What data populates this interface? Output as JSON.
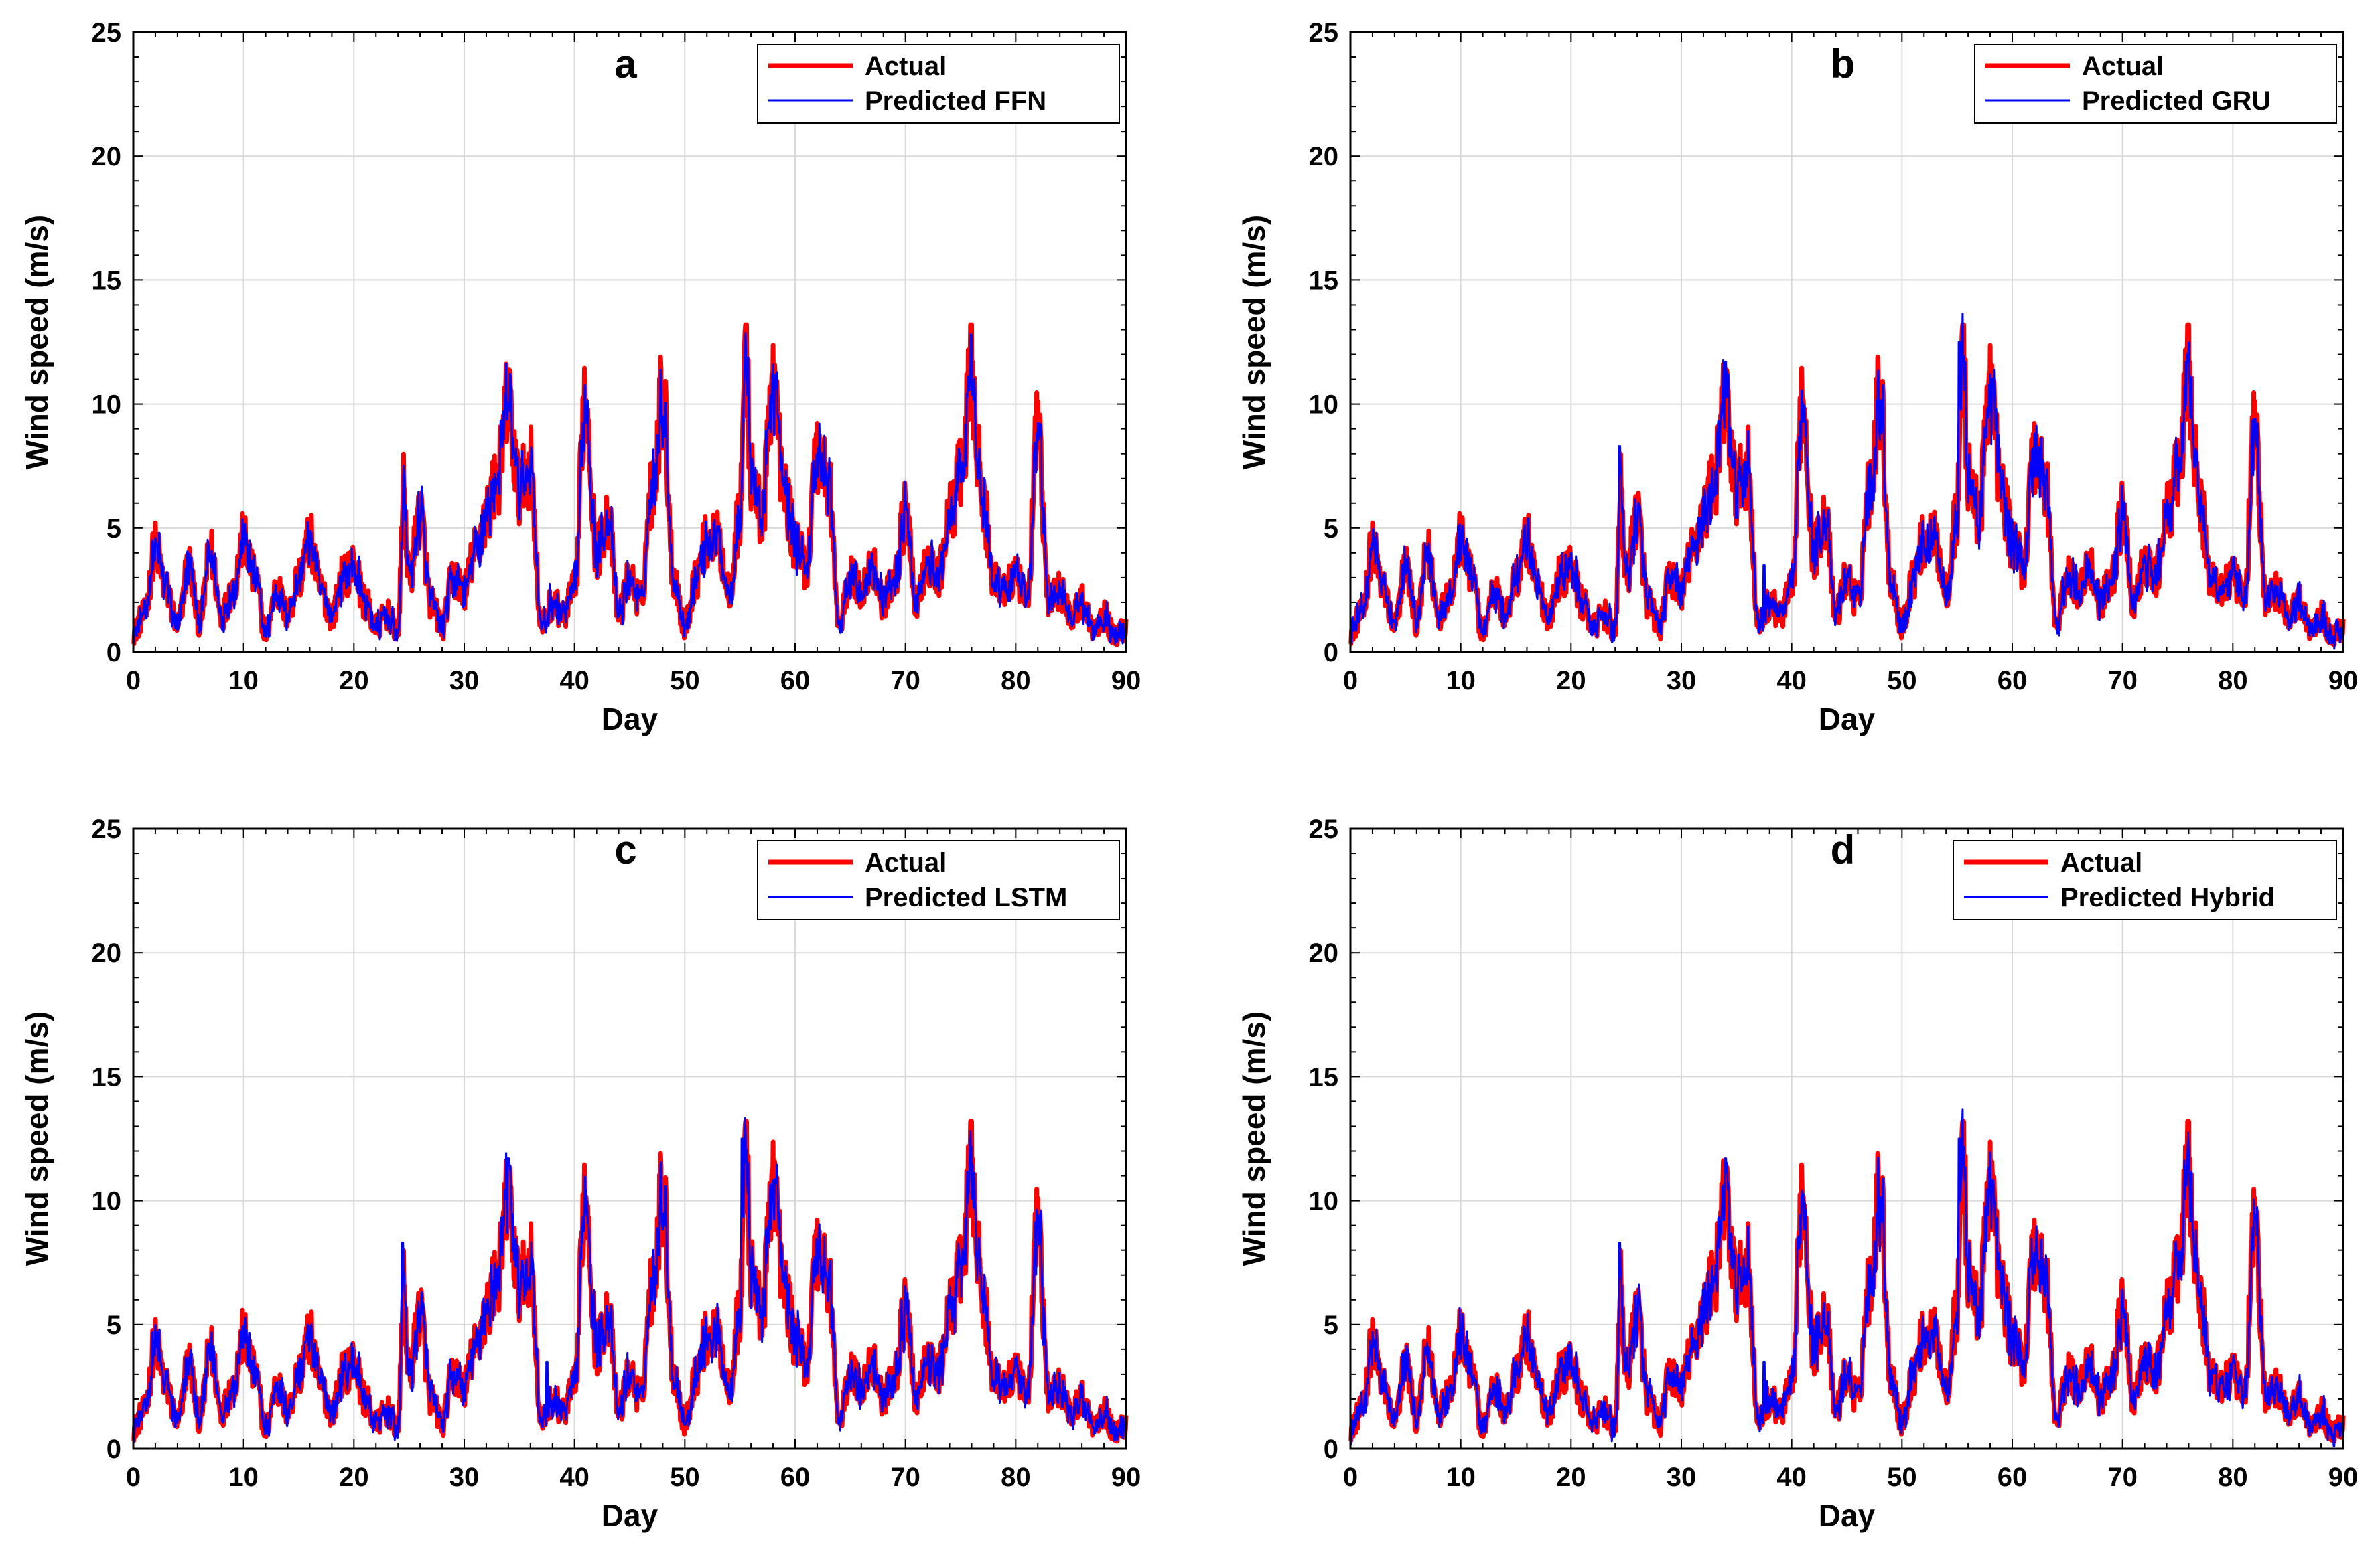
{
  "chart_data": [
    {
      "type": "line",
      "panel_label": "a",
      "xlabel": "Day",
      "ylabel": "Wind speed (m/s)",
      "xlim": [
        0,
        90
      ],
      "ylim": [
        0,
        25
      ],
      "xticks": [
        0,
        10,
        20,
        30,
        40,
        50,
        60,
        70,
        80,
        90
      ],
      "yticks": [
        0,
        5,
        10,
        15,
        20,
        25
      ],
      "grid": true,
      "legend_position": "top-right",
      "series": [
        {
          "name": "Actual",
          "color": "#ff0000"
        },
        {
          "name": "Predicted FFN",
          "color": "#0000ff"
        }
      ]
    },
    {
      "type": "line",
      "panel_label": "b",
      "xlabel": "Day",
      "ylabel": "Wind speed (m/s)",
      "xlim": [
        0,
        90
      ],
      "ylim": [
        0,
        25
      ],
      "xticks": [
        0,
        10,
        20,
        30,
        40,
        50,
        60,
        70,
        80,
        90
      ],
      "yticks": [
        0,
        5,
        10,
        15,
        20,
        25
      ],
      "grid": true,
      "legend_position": "top-right",
      "series": [
        {
          "name": "Actual",
          "color": "#ff0000"
        },
        {
          "name": "Predicted GRU",
          "color": "#0000ff"
        }
      ]
    },
    {
      "type": "line",
      "panel_label": "c",
      "xlabel": "Day",
      "ylabel": "Wind speed (m/s)",
      "xlim": [
        0,
        90
      ],
      "ylim": [
        0,
        25
      ],
      "xticks": [
        0,
        10,
        20,
        30,
        40,
        50,
        60,
        70,
        80,
        90
      ],
      "yticks": [
        0,
        5,
        10,
        15,
        20,
        25
      ],
      "grid": true,
      "legend_position": "top-right",
      "series": [
        {
          "name": "Actual",
          "color": "#ff0000"
        },
        {
          "name": "Predicted LSTM",
          "color": "#0000ff"
        }
      ]
    },
    {
      "type": "line",
      "panel_label": "d",
      "xlabel": "Day",
      "ylabel": "Wind speed (m/s)",
      "xlim": [
        0,
        90
      ],
      "ylim": [
        0,
        25
      ],
      "xticks": [
        0,
        10,
        20,
        30,
        40,
        50,
        60,
        70,
        80,
        90
      ],
      "yticks": [
        0,
        5,
        10,
        15,
        20,
        25
      ],
      "grid": true,
      "legend_position": "top-right",
      "series": [
        {
          "name": "Actual",
          "color": "#ff0000"
        },
        {
          "name": "Predicted Hybrid",
          "color": "#0000ff"
        }
      ]
    }
  ],
  "actual_key_points": {
    "days": [
      0,
      1,
      2,
      3,
      4,
      5,
      6,
      7,
      8,
      9,
      10,
      11,
      12,
      13,
      14,
      15,
      16,
      17,
      18,
      19,
      20,
      21,
      22,
      23,
      24,
      24.5,
      25,
      26,
      27,
      28,
      29,
      30,
      31,
      32,
      33,
      34,
      35,
      36,
      37,
      38,
      39,
      40,
      41,
      42,
      43,
      44,
      45,
      46,
      47,
      48,
      49,
      50,
      51,
      52,
      53,
      54,
      55,
      55.5,
      56,
      57,
      58,
      59,
      60,
      61,
      62,
      63,
      64,
      65,
      66,
      67,
      68,
      69,
      70,
      71,
      72,
      73,
      74,
      75,
      76,
      77,
      78,
      79,
      80,
      81,
      82,
      83,
      84,
      85,
      86,
      87,
      88,
      89,
      90
    ],
    "speeds": [
      0.8,
      1.5,
      4.2,
      2.5,
      1.0,
      3.5,
      1.2,
      4.0,
      1.5,
      2.5,
      4.5,
      3.0,
      0.8,
      2.5,
      1.5,
      3.0,
      4.5,
      2.5,
      1.5,
      3.0,
      3.5,
      2.0,
      1.0,
      1.5,
      0.8,
      6.5,
      3.0,
      5.5,
      2.0,
      1.0,
      3.0,
      2.5,
      4.0,
      5.5,
      7.0,
      10.0,
      6.5,
      7.5,
      1.0,
      2.0,
      1.5,
      2.5,
      10.5,
      4.0,
      5.5,
      1.5,
      3.0,
      2.0,
      6.5,
      10.3,
      3.0,
      1.0,
      3.0,
      4.5,
      4.5,
      2.5,
      5.5,
      13.0,
      7.0,
      5.5,
      11.0,
      6.5,
      4.5,
      3.5,
      8.0,
      7.0,
      1.0,
      3.0,
      2.5,
      3.5,
      2.0,
      3.0,
      5.5,
      2.0,
      3.5,
      3.0,
      5.5,
      7.0,
      11.2,
      6.0,
      3.0,
      2.5,
      3.0,
      2.0,
      9.0,
      2.0,
      2.5,
      1.5,
      2.0,
      1.0,
      1.5,
      0.6,
      1.0
    ]
  }
}
